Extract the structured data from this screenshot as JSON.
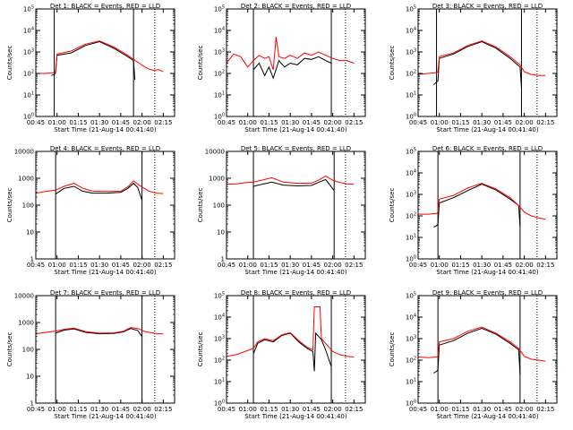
{
  "chart_data": [
    {
      "type": "line",
      "title": "Det 1: BLACK = Events, RED = LLD",
      "xlabel": "Start Time (21-Aug-14 00:41:40)",
      "ylabel": "Counts/sec",
      "yscale": "log",
      "ylim": [
        1,
        100000
      ],
      "ytick_labels": [
        "10^0",
        "10^1",
        "10^2",
        "10^3",
        "10^4",
        "10^5"
      ],
      "xlim_minutes": [
        0,
        98
      ],
      "xtick_labels": [
        "00:45",
        "01:00",
        "01:15",
        "01:30",
        "01:45",
        "02:00",
        "02:15"
      ],
      "vlines_solid": [
        "00:58",
        "01:54"
      ],
      "vlines_dotted": [
        "02:09"
      ],
      "series": [
        {
          "name": "BLACK = Events",
          "color": "#000000",
          "x": [
            "00:56",
            "00:58",
            "00:59",
            "01:00",
            "01:10",
            "01:20",
            "01:30",
            "01:40",
            "01:50",
            "01:54",
            "01:55"
          ],
          "y": [
            80,
            90,
            110,
            700,
            900,
            2000,
            3000,
            1500,
            600,
            400,
            50
          ]
        },
        {
          "name": "RED = LLD",
          "color": "#ff0000",
          "x": [
            "00:45",
            "00:52",
            "00:58",
            "00:59",
            "01:00",
            "01:10",
            "01:20",
            "01:30",
            "01:40",
            "01:50",
            "01:54",
            "01:58",
            "02:02",
            "02:05",
            "02:08",
            "02:12",
            "02:15"
          ],
          "y": [
            100,
            100,
            110,
            120,
            800,
            1100,
            2300,
            3300,
            1700,
            700,
            450,
            300,
            200,
            160,
            140,
            150,
            120
          ]
        }
      ]
    },
    {
      "type": "line",
      "title": "Det 2: BLACK = Events, RED = LLD",
      "xlabel": "Start Time (21-Aug-14 00:41:40)",
      "ylabel": "Counts/sec",
      "yscale": "log",
      "ylim": [
        1,
        100000
      ],
      "ytick_labels": [
        "10^0",
        "10^1",
        "10^2",
        "10^3",
        "10^4",
        "10^5"
      ],
      "xlim_minutes": [
        0,
        98
      ],
      "xtick_labels": [
        "00:45",
        "01:00",
        "01:15",
        "01:30",
        "01:45",
        "02:00",
        "02:15"
      ],
      "vlines_solid": [
        "01:04",
        "01:59"
      ],
      "vlines_dotted": [
        "02:09"
      ],
      "series": [
        {
          "name": "BLACK = Events",
          "color": "#000000",
          "x": [
            "01:04",
            "01:08",
            "01:12",
            "01:15",
            "01:18",
            "01:22",
            "01:26",
            "01:30",
            "01:35",
            "01:40",
            "01:45",
            "01:50",
            "01:55",
            "01:59"
          ],
          "y": [
            150,
            300,
            80,
            200,
            60,
            400,
            200,
            300,
            250,
            500,
            450,
            600,
            400,
            300
          ]
        },
        {
          "name": "RED = LLD",
          "color": "#ff0000",
          "x": [
            "00:45",
            "00:50",
            "00:55",
            "01:00",
            "01:04",
            "01:08",
            "01:12",
            "01:15",
            "01:18",
            "01:20",
            "01:22",
            "01:26",
            "01:30",
            "01:35",
            "01:40",
            "01:45",
            "01:50",
            "01:55",
            "02:00",
            "02:05",
            "02:10",
            "02:15"
          ],
          "y": [
            300,
            800,
            600,
            200,
            400,
            700,
            500,
            600,
            150,
            5000,
            600,
            500,
            700,
            500,
            900,
            700,
            1000,
            700,
            500,
            400,
            400,
            300
          ]
        }
      ]
    },
    {
      "type": "line",
      "title": "Det 3: BLACK = Events, RED = LLD",
      "xlabel": "Start Time (21-Aug-14 00:41:40)",
      "ylabel": "Counts/sec",
      "yscale": "log",
      "ylim": [
        1,
        100000
      ],
      "ytick_labels": [
        "10^0",
        "10^1",
        "10^2",
        "10^3",
        "10^4",
        "10^5"
      ],
      "xlim_minutes": [
        0,
        98
      ],
      "xtick_labels": [
        "00:45",
        "01:00",
        "01:15",
        "01:30",
        "01:45",
        "02:00",
        "02:15"
      ],
      "vlines_solid": [
        "00:58",
        "01:58"
      ],
      "vlines_dotted": [
        "02:09"
      ],
      "series": [
        {
          "name": "BLACK = Events",
          "color": "#000000",
          "x": [
            "00:56",
            "00:58",
            "00:59",
            "01:00",
            "01:10",
            "01:20",
            "01:30",
            "01:40",
            "01:50",
            "01:57",
            "01:58"
          ],
          "y": [
            30,
            40,
            45,
            500,
            800,
            1800,
            3000,
            1500,
            500,
            200,
            20
          ]
        },
        {
          "name": "RED = LLD",
          "color": "#ff0000",
          "x": [
            "00:45",
            "00:52",
            "00:58",
            "00:59",
            "01:00",
            "01:10",
            "01:20",
            "01:30",
            "01:40",
            "01:50",
            "01:57",
            "02:00",
            "02:05",
            "02:10",
            "02:15"
          ],
          "y": [
            90,
            100,
            110,
            120,
            600,
            900,
            2000,
            3300,
            1700,
            600,
            250,
            120,
            90,
            80,
            80
          ]
        }
      ]
    },
    {
      "type": "line",
      "title": "Det 4: BLACK = Events, RED = LLD",
      "xlabel": "Start Time (21-Aug-14 00:41:40)",
      "ylabel": "Counts/sec",
      "yscale": "log",
      "ylim": [
        1,
        10000
      ],
      "ytick_labels": [
        "1",
        "10",
        "100",
        "1000",
        "10000"
      ],
      "xlim_minutes": [
        0,
        98
      ],
      "xtick_labels": [
        "00:45",
        "01:00",
        "01:15",
        "01:30",
        "01:45",
        "02:00",
        "02:15"
      ],
      "vlines_solid": [
        "00:59",
        "02:00"
      ],
      "vlines_dotted": [
        "02:09"
      ],
      "series": [
        {
          "name": "BLACK = Events",
          "color": "#000000",
          "x": [
            "00:59",
            "01:05",
            "01:12",
            "01:18",
            "01:25",
            "01:35",
            "01:45",
            "01:50",
            "01:54",
            "01:57",
            "02:00"
          ],
          "y": [
            260,
            420,
            500,
            330,
            280,
            280,
            300,
            420,
            650,
            450,
            150
          ]
        },
        {
          "name": "RED = LLD",
          "color": "#ff0000",
          "x": [
            "00:45",
            "00:52",
            "00:59",
            "01:05",
            "01:12",
            "01:18",
            "01:25",
            "01:35",
            "01:45",
            "01:50",
            "01:54",
            "01:58",
            "02:05",
            "02:10",
            "02:15"
          ],
          "y": [
            280,
            320,
            360,
            500,
            650,
            430,
            330,
            320,
            330,
            480,
            800,
            550,
            330,
            280,
            270
          ]
        }
      ]
    },
    {
      "type": "line",
      "title": "Det 5: BLACK = Events, RED = LLD",
      "xlabel": "Start Time (21-Aug-14 00:41:40)",
      "ylabel": "Counts/sec",
      "yscale": "log",
      "ylim": [
        1,
        10000
      ],
      "ytick_labels": [
        "1",
        "10",
        "100",
        "1000",
        "10000"
      ],
      "xlim_minutes": [
        0,
        98
      ],
      "xtick_labels": [
        "00:45",
        "01:00",
        "01:15",
        "01:30",
        "01:45",
        "02:00",
        "02:15"
      ],
      "vlines_solid": [
        "01:04",
        "02:01"
      ],
      "vlines_dotted": [
        "02:09"
      ],
      "series": [
        {
          "name": "BLACK = Events",
          "color": "#000000",
          "x": [
            "01:04",
            "01:10",
            "01:17",
            "01:25",
            "01:35",
            "01:45",
            "01:50",
            "01:55",
            "02:01"
          ],
          "y": [
            500,
            600,
            720,
            560,
            520,
            540,
            700,
            900,
            350
          ]
        },
        {
          "name": "RED = LLD",
          "color": "#ff0000",
          "x": [
            "00:45",
            "00:52",
            "00:58",
            "01:04",
            "01:10",
            "01:17",
            "01:25",
            "01:35",
            "01:45",
            "01:50",
            "01:55",
            "02:00",
            "02:05",
            "02:10",
            "02:15"
          ],
          "y": [
            600,
            620,
            680,
            720,
            850,
            1050,
            720,
            650,
            660,
            850,
            1200,
            850,
            700,
            620,
            600
          ]
        }
      ]
    },
    {
      "type": "line",
      "title": "Det 6: BLACK = Events, RED = LLD",
      "xlabel": "Start Time (21-Aug-14 00:41:40)",
      "ylabel": "Counts/sec",
      "yscale": "log",
      "ylim": [
        1,
        100000
      ],
      "ytick_labels": [
        "10^0",
        "10^1",
        "10^2",
        "10^3",
        "10^4",
        "10^5"
      ],
      "xlim_minutes": [
        0,
        98
      ],
      "xtick_labels": [
        "00:45",
        "01:00",
        "01:15",
        "01:30",
        "01:45",
        "02:00",
        "02:15"
      ],
      "vlines_solid": [
        "00:59",
        "01:57"
      ],
      "vlines_dotted": [
        "02:09"
      ],
      "series": [
        {
          "name": "BLACK = Events",
          "color": "#000000",
          "x": [
            "00:56",
            "00:58",
            "00:59",
            "01:00",
            "01:10",
            "01:20",
            "01:30",
            "01:40",
            "01:50",
            "01:56",
            "01:57"
          ],
          "y": [
            30,
            35,
            40,
            400,
            700,
            1500,
            3000,
            1600,
            600,
            300,
            30
          ]
        },
        {
          "name": "RED = LLD",
          "color": "#ff0000",
          "x": [
            "00:45",
            "00:52",
            "00:58",
            "00:59",
            "01:00",
            "01:10",
            "01:20",
            "01:30",
            "01:40",
            "01:50",
            "01:56",
            "02:00",
            "02:05",
            "02:10",
            "02:15"
          ],
          "y": [
            120,
            120,
            130,
            150,
            600,
            900,
            2000,
            3300,
            1800,
            700,
            300,
            150,
            100,
            80,
            70
          ]
        }
      ]
    },
    {
      "type": "line",
      "title": "Det 7: BLACK = Events, RED = LLD",
      "xlabel": "Start Time (21-Aug-14 00:41:40)",
      "ylabel": "Counts/sec",
      "yscale": "log",
      "ylim": [
        1,
        10000
      ],
      "ytick_labels": [
        "1",
        "10",
        "100",
        "1000",
        "10000"
      ],
      "xlim_minutes": [
        0,
        98
      ],
      "xtick_labels": [
        "00:45",
        "01:00",
        "01:15",
        "01:30",
        "01:45",
        "02:00",
        "02:15"
      ],
      "vlines_solid": [
        "00:59",
        "02:00"
      ],
      "vlines_dotted": [
        "02:09"
      ],
      "series": [
        {
          "name": "BLACK = Events",
          "color": "#000000",
          "x": [
            "00:59",
            "01:05",
            "01:12",
            "01:20",
            "01:30",
            "01:40",
            "01:47",
            "01:52",
            "01:57",
            "02:00"
          ],
          "y": [
            400,
            520,
            580,
            430,
            380,
            390,
            450,
            600,
            500,
            300
          ]
        },
        {
          "name": "RED = LLD",
          "color": "#ff0000",
          "x": [
            "00:45",
            "00:52",
            "00:59",
            "01:05",
            "01:12",
            "01:20",
            "01:30",
            "01:40",
            "01:47",
            "01:52",
            "01:57",
            "02:02",
            "02:08",
            "02:12",
            "02:15"
          ],
          "y": [
            380,
            430,
            480,
            560,
            620,
            460,
            400,
            410,
            480,
            650,
            600,
            460,
            400,
            380,
            380
          ]
        }
      ]
    },
    {
      "type": "line",
      "title": "Det 8: BLACK = Events, RED = LLD",
      "xlabel": "Start Time (21-Aug-14 00:41:40)",
      "ylabel": "Counts/sec",
      "yscale": "log",
      "ylim": [
        1,
        100000
      ],
      "ytick_labels": [
        "10^0",
        "10^1",
        "10^2",
        "10^3",
        "10^4",
        "10^5"
      ],
      "xlim_minutes": [
        0,
        98
      ],
      "xtick_labels": [
        "00:45",
        "01:00",
        "01:15",
        "01:30",
        "01:45",
        "02:00",
        "02:15"
      ],
      "vlines_solid": [
        "01:04",
        "01:59"
      ],
      "vlines_dotted": [
        "02:09"
      ],
      "series": [
        {
          "name": "BLACK = Events",
          "color": "#000000",
          "x": [
            "01:04",
            "01:07",
            "01:12",
            "01:18",
            "01:24",
            "01:30",
            "01:36",
            "01:42",
            "01:46",
            "01:47",
            "01:48",
            "01:52",
            "01:55",
            "01:59"
          ],
          "y": [
            200,
            600,
            900,
            700,
            1400,
            1800,
            700,
            350,
            250,
            30,
            1800,
            900,
            300,
            50
          ]
        },
        {
          "name": "RED = LLD",
          "color": "#ff0000",
          "x": [
            "00:45",
            "00:52",
            "00:58",
            "01:04",
            "01:07",
            "01:12",
            "01:18",
            "01:24",
            "01:30",
            "01:36",
            "01:42",
            "01:46",
            "01:47",
            "01:51",
            "01:52",
            "01:55",
            "02:00",
            "02:05",
            "02:10",
            "02:15"
          ],
          "y": [
            150,
            180,
            250,
            350,
            700,
            1000,
            800,
            1500,
            1900,
            800,
            400,
            300,
            30000,
            30000,
            1000,
            600,
            250,
            180,
            150,
            140
          ]
        }
      ]
    },
    {
      "type": "line",
      "title": "Det 9: BLACK = Events, RED = LLD",
      "xlabel": "Start Time (21-Aug-14 00:41:40)",
      "ylabel": "Counts/sec",
      "yscale": "log",
      "ylim": [
        1,
        100000
      ],
      "ytick_labels": [
        "10^0",
        "10^1",
        "10^2",
        "10^3",
        "10^4",
        "10^5"
      ],
      "xlim_minutes": [
        0,
        98
      ],
      "xtick_labels": [
        "00:45",
        "01:00",
        "01:15",
        "01:30",
        "01:45",
        "02:00",
        "02:15"
      ],
      "vlines_solid": [
        "00:59",
        "01:57"
      ],
      "vlines_dotted": [
        "02:09"
      ],
      "series": [
        {
          "name": "BLACK = Events",
          "color": "#000000",
          "x": [
            "00:56",
            "00:58",
            "00:59",
            "01:00",
            "01:10",
            "01:20",
            "01:30",
            "01:40",
            "01:50",
            "01:56",
            "01:57"
          ],
          "y": [
            25,
            30,
            35,
            500,
            800,
            1800,
            3000,
            1600,
            600,
            300,
            20
          ]
        },
        {
          "name": "RED = LLD",
          "color": "#ff0000",
          "x": [
            "00:45",
            "00:52",
            "00:58",
            "00:59",
            "01:00",
            "01:10",
            "01:20",
            "01:30",
            "01:40",
            "01:50",
            "01:56",
            "02:00",
            "02:05",
            "02:10",
            "02:15"
          ],
          "y": [
            140,
            130,
            140,
            150,
            700,
            1000,
            2200,
            3400,
            1800,
            700,
            350,
            150,
            110,
            100,
            90
          ]
        }
      ]
    }
  ]
}
